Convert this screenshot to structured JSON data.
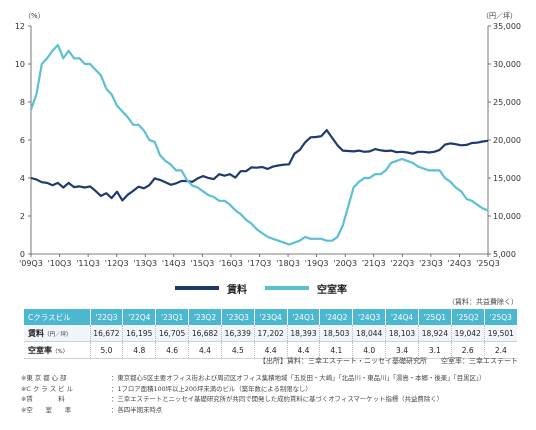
{
  "chart_data": {
    "type": "line",
    "x_tick_labels": [
      "'09Q3",
      "'10Q3",
      "'11Q3",
      "'12Q3",
      "'13Q3",
      "'14Q3",
      "'15Q3",
      "'16Q3",
      "'17Q3",
      "'18Q3",
      "'19Q3",
      "'20Q3",
      "'21Q3",
      "'22Q3",
      "'23Q3",
      "'24Q3",
      "'25Q3"
    ],
    "left_axis": {
      "unit": "（%）",
      "range": [
        0,
        12
      ],
      "ticks": [
        "0",
        "2",
        "4",
        "6",
        "8",
        "10",
        "12"
      ]
    },
    "right_axis": {
      "unit": "（円／坪）",
      "range": [
        5000,
        35000
      ],
      "ticks": [
        "5,000",
        "10,000",
        "15,000",
        "20,000",
        "25,000",
        "30,000",
        "35,000"
      ]
    },
    "grid": false,
    "legend_position": "bottom",
    "series": [
      {
        "name": "賃料",
        "axis": "right",
        "color": "#1f3a6e",
        "values": [
          15000,
          14800,
          14450,
          14350,
          14050,
          14350,
          13750,
          14350,
          13800,
          13900,
          13750,
          13900,
          13300,
          12650,
          13000,
          12350,
          13200,
          12050,
          12800,
          13300,
          13850,
          13650,
          14050,
          14950,
          14750,
          14450,
          14100,
          14300,
          14600,
          14600,
          14500,
          14950,
          15250,
          15000,
          14850,
          15500,
          15300,
          15500,
          15050,
          15900,
          15900,
          16400,
          16350,
          16450,
          16200,
          16500,
          16650,
          16750,
          16800,
          18200,
          18700,
          19700,
          20350,
          20400,
          20500,
          21300,
          20300,
          19300,
          18600,
          18550,
          18500,
          18600,
          18450,
          18500,
          18800,
          18650,
          18550,
          18600,
          18400,
          18450,
          18350,
          18200,
          18450,
          18450,
          18350,
          18450,
          18700,
          19400,
          19550,
          19450,
          19300,
          19350,
          19600,
          19650,
          19800,
          19900
        ]
      },
      {
        "name": "空室率",
        "axis": "left",
        "color": "#5bbfd6",
        "values": [
          7.6,
          8.4,
          10.0,
          10.3,
          10.7,
          11.0,
          10.3,
          10.7,
          10.3,
          10.3,
          10.0,
          10.0,
          9.7,
          9.4,
          8.7,
          8.4,
          7.8,
          7.5,
          7.2,
          6.8,
          6.8,
          6.5,
          6.0,
          5.9,
          5.2,
          4.9,
          4.7,
          4.4,
          4.4,
          3.9,
          3.6,
          3.5,
          3.3,
          3.1,
          3.0,
          2.8,
          2.8,
          2.6,
          2.3,
          2.1,
          1.8,
          1.6,
          1.3,
          1.1,
          0.9,
          0.8,
          0.7,
          0.6,
          0.5,
          0.6,
          0.7,
          0.9,
          0.8,
          0.8,
          0.8,
          0.7,
          0.7,
          0.9,
          1.5,
          2.5,
          3.5,
          3.8,
          4.0,
          4.0,
          4.2,
          4.2,
          4.4,
          4.8,
          4.9,
          5.0,
          4.9,
          4.8,
          4.6,
          4.5,
          4.4,
          4.4,
          4.4,
          4.0,
          3.8,
          3.5,
          3.3,
          2.9,
          2.8,
          2.6,
          2.4,
          2.3
        ]
      }
    ]
  },
  "table": {
    "source_top": "（賃料：共益費除く）",
    "header_label": "Cクラスビル",
    "columns": [
      "'22Q3",
      "'22Q4",
      "'23Q1",
      "'23Q2",
      "'23Q3",
      "'23Q4",
      "'24Q1",
      "'24Q2",
      "'24Q3",
      "'24Q4",
      "'25Q1",
      "'25Q2",
      "'25Q3"
    ],
    "rows": [
      {
        "label": "賃料",
        "unit": "（円／坪）",
        "values": [
          "16,672",
          "16,195",
          "16,705",
          "16,682",
          "16,339",
          "17,202",
          "18,393",
          "18,503",
          "18,044",
          "18,103",
          "18,924",
          "19,042",
          "19,501"
        ]
      },
      {
        "label": "空室率",
        "unit": "（%）",
        "values": [
          "5.0",
          "4.8",
          "4.6",
          "4.4",
          "4.5",
          "4.4",
          "4.4",
          "4.1",
          "4.0",
          "3.4",
          "3.1",
          "2.6",
          "2.4"
        ]
      }
    ],
    "source_bottom": "【出所】賃料：三幸エステート・ニッセイ基礎研究所　　空室率：三幸エステート"
  },
  "notes": [
    {
      "key": "※東 京 都 心 部",
      "text": "：東京都心5区主要オフィス街および周辺区オフィス集積地域「五反田・大崎」「北品川・東品川」「湯島・本郷・後楽」「目黒区」）"
    },
    {
      "key": "※C ク ラ ス ビ ル",
      "text": "：1フロア面積100坪以上200坪未満のビル（築年数による制限なし）"
    },
    {
      "key": "※賃　　　　料",
      "text": "：三幸エステートとニッセイ基礎研究所が共同で開発した成約賃料に基づくオフィスマーケット指標（共益費除く）"
    },
    {
      "key": "※空　　室　　率",
      "text": "：各四半期末時点"
    }
  ]
}
